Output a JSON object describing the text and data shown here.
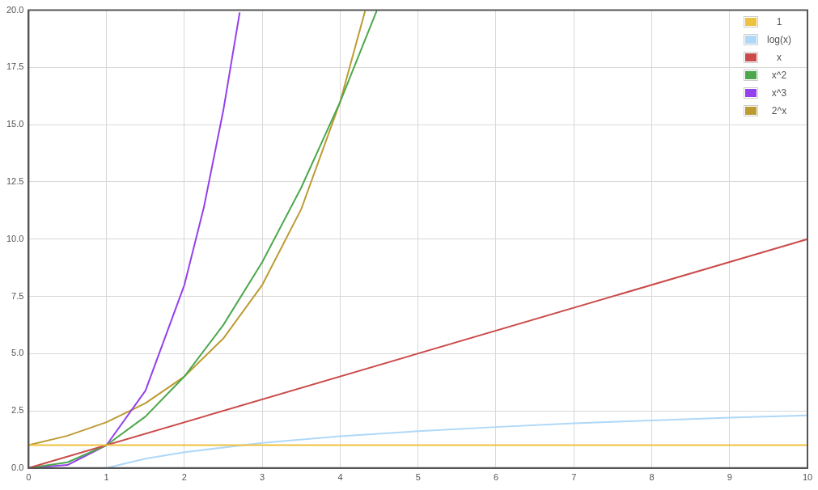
{
  "chart_data": {
    "type": "line",
    "xlim": [
      0,
      10
    ],
    "ylim": [
      0,
      20
    ],
    "xticks": [
      0,
      1,
      2,
      3,
      4,
      5,
      6,
      7,
      8,
      9,
      10
    ],
    "yticks": [
      {
        "value": 0,
        "label": "0.0"
      },
      {
        "value": 2.5,
        "label": "2.5"
      },
      {
        "value": 5,
        "label": "5.0"
      },
      {
        "value": 7.5,
        "label": "7.5"
      },
      {
        "value": 10,
        "label": "10.0"
      },
      {
        "value": 12.5,
        "label": "12.5"
      },
      {
        "value": 15,
        "label": "15.0"
      },
      {
        "value": 17.5,
        "label": "17.5"
      },
      {
        "value": 20,
        "label": "20.0"
      }
    ],
    "grid": true,
    "legend": "top right",
    "marker": "none",
    "line_style": "solid",
    "series": [
      {
        "name": "1",
        "color": "#edc240",
        "x": [
          0,
          10
        ],
        "values": [
          1,
          1
        ]
      },
      {
        "name": "log(x)",
        "color": "#afd8f8",
        "x": [
          1,
          1.5,
          2,
          3,
          4,
          5,
          6,
          7,
          8,
          9,
          10
        ],
        "values": [
          0,
          0.41,
          0.69,
          1.1,
          1.39,
          1.61,
          1.79,
          1.95,
          2.08,
          2.2,
          2.3
        ]
      },
      {
        "name": "x",
        "color": "#cb4b4b",
        "x": [
          0,
          10
        ],
        "values": [
          0,
          10
        ]
      },
      {
        "name": "x^2",
        "color": "#4da74d",
        "x": [
          0,
          0.5,
          1,
          1.5,
          2,
          2.5,
          3,
          3.5,
          4,
          4.47
        ],
        "values": [
          0,
          0.25,
          1,
          2.25,
          4,
          6.25,
          9,
          12.25,
          16,
          19.98
        ]
      },
      {
        "name": "x^3",
        "color": "#9440ed",
        "x": [
          0,
          0.5,
          1,
          1.5,
          2,
          2.25,
          2.5,
          2.71
        ],
        "values": [
          0,
          0.13,
          1,
          3.38,
          8,
          11.39,
          15.63,
          19.9
        ]
      },
      {
        "name": "2^x",
        "color": "#bd9b33",
        "x": [
          0,
          0.5,
          1,
          1.5,
          2,
          2.5,
          3,
          3.5,
          4,
          4.32
        ],
        "values": [
          1,
          1.41,
          2,
          2.83,
          4,
          5.66,
          8,
          11.31,
          16,
          19.97
        ]
      }
    ]
  }
}
